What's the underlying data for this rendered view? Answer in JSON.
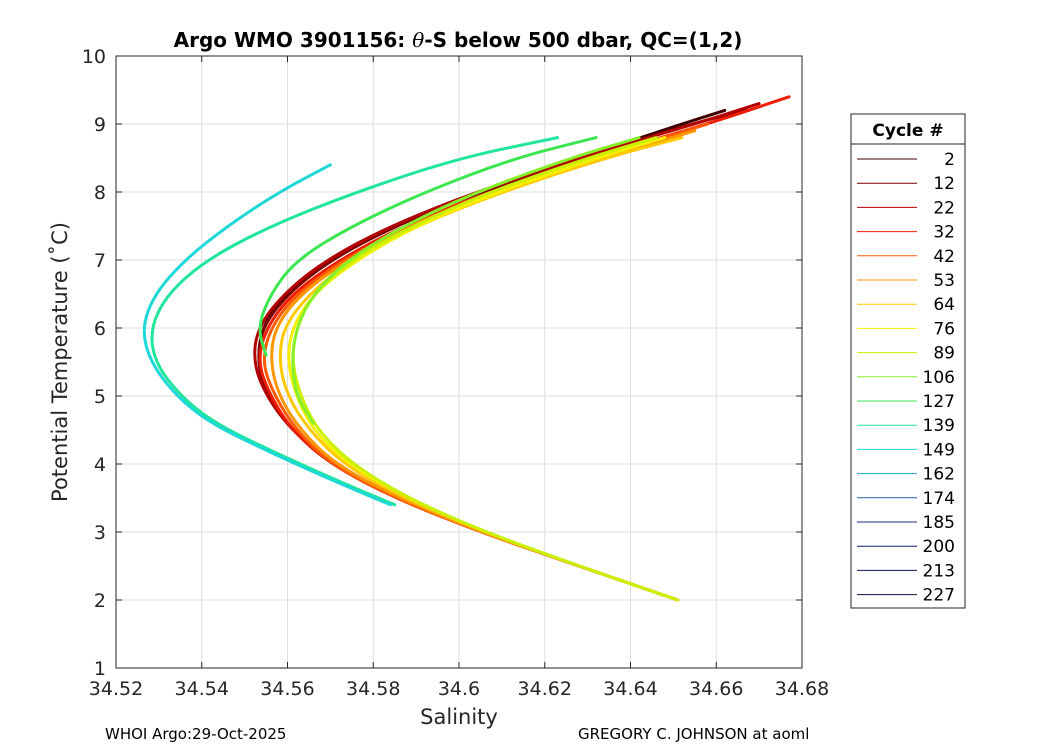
{
  "footer": {
    "left": "WHOI Argo:29-Oct-2025",
    "right": "GREGORY C. JOHNSON at aoml"
  },
  "chart_data": {
    "type": "line",
    "title_prefix": "Argo WMO 3901156: ",
    "title_symbol": "θ",
    "title_suffix": "-S below 500 dbar,  QC=(1,2)",
    "xlabel": "Salinity",
    "ylabel": "Potential Temperature (˚C)",
    "xlim": [
      34.52,
      34.68
    ],
    "ylim": [
      1,
      10
    ],
    "xticks": [
      34.52,
      34.54,
      34.56,
      34.58,
      34.6,
      34.62,
      34.64,
      34.66,
      34.68
    ],
    "xtick_labels": [
      "34.52",
      "34.54",
      "34.56",
      "34.58",
      "34.6",
      "34.62",
      "34.64",
      "34.66",
      "34.68"
    ],
    "yticks": [
      1,
      2,
      3,
      4,
      5,
      6,
      7,
      8,
      9,
      10
    ],
    "ytick_labels": [
      "1",
      "2",
      "3",
      "4",
      "5",
      "6",
      "7",
      "8",
      "9",
      "10"
    ],
    "grid": true,
    "legend_title": "Cycle #",
    "legend_position": "outside-right",
    "series": [
      {
        "name": "2",
        "color": "#3d0000",
        "points": [
          [
            34.651,
            2.0
          ],
          [
            34.628,
            2.5
          ],
          [
            34.605,
            3.0
          ],
          [
            34.585,
            3.5
          ],
          [
            34.57,
            4.0
          ],
          [
            34.561,
            4.5
          ],
          [
            34.555,
            5.0
          ],
          [
            34.553,
            5.5
          ],
          [
            34.554,
            6.0
          ],
          [
            34.559,
            6.5
          ],
          [
            34.569,
            7.0
          ],
          [
            34.584,
            7.5
          ],
          [
            34.604,
            8.0
          ],
          [
            34.628,
            8.5
          ],
          [
            34.652,
            9.0
          ],
          [
            34.662,
            9.2
          ]
        ]
      },
      {
        "name": "12",
        "color": "#7a0000",
        "points": [
          [
            34.651,
            2.0
          ],
          [
            34.628,
            2.5
          ],
          [
            34.605,
            3.0
          ],
          [
            34.585,
            3.5
          ],
          [
            34.57,
            4.0
          ],
          [
            34.561,
            4.5
          ],
          [
            34.555,
            5.0
          ],
          [
            34.553,
            5.5
          ],
          [
            34.554,
            6.0
          ],
          [
            34.56,
            6.5
          ],
          [
            34.57,
            7.0
          ],
          [
            34.585,
            7.5
          ],
          [
            34.605,
            8.0
          ],
          [
            34.629,
            8.5
          ],
          [
            34.654,
            9.0
          ],
          [
            34.667,
            9.2
          ]
        ]
      },
      {
        "name": "22",
        "color": "#b50000",
        "points": [
          [
            34.651,
            2.0
          ],
          [
            34.628,
            2.5
          ],
          [
            34.605,
            3.0
          ],
          [
            34.585,
            3.5
          ],
          [
            34.57,
            4.0
          ],
          [
            34.561,
            4.5
          ],
          [
            34.555,
            5.0
          ],
          [
            34.552,
            5.5
          ],
          [
            34.553,
            6.0
          ],
          [
            34.559,
            6.5
          ],
          [
            34.569,
            7.0
          ],
          [
            34.584,
            7.5
          ],
          [
            34.604,
            8.0
          ],
          [
            34.628,
            8.5
          ],
          [
            34.655,
            9.0
          ],
          [
            34.67,
            9.3
          ]
        ]
      },
      {
        "name": "32",
        "color": "#f01c00",
        "points": [
          [
            34.651,
            2.0
          ],
          [
            34.628,
            2.5
          ],
          [
            34.605,
            3.0
          ],
          [
            34.585,
            3.5
          ],
          [
            34.57,
            4.0
          ],
          [
            34.561,
            4.5
          ],
          [
            34.556,
            5.0
          ],
          [
            34.553,
            5.5
          ],
          [
            34.555,
            6.0
          ],
          [
            34.561,
            6.5
          ],
          [
            34.572,
            7.0
          ],
          [
            34.587,
            7.5
          ],
          [
            34.607,
            8.0
          ],
          [
            34.631,
            8.5
          ],
          [
            34.658,
            9.0
          ],
          [
            34.677,
            9.4
          ]
        ]
      },
      {
        "name": "42",
        "color": "#ff5a00",
        "points": [
          [
            34.651,
            2.0
          ],
          [
            34.628,
            2.5
          ],
          [
            34.605,
            3.0
          ],
          [
            34.585,
            3.5
          ],
          [
            34.57,
            4.0
          ],
          [
            34.562,
            4.5
          ],
          [
            34.557,
            5.0
          ],
          [
            34.554,
            5.5
          ],
          [
            34.556,
            6.0
          ],
          [
            34.562,
            6.5
          ],
          [
            34.573,
            7.0
          ],
          [
            34.588,
            7.5
          ],
          [
            34.608,
            8.0
          ],
          [
            34.632,
            8.5
          ],
          [
            34.658,
            9.0
          ]
        ]
      },
      {
        "name": "53",
        "color": "#ff9600",
        "points": [
          [
            34.651,
            2.0
          ],
          [
            34.628,
            2.5
          ],
          [
            34.605,
            3.0
          ],
          [
            34.586,
            3.5
          ],
          [
            34.571,
            4.0
          ],
          [
            34.563,
            4.5
          ],
          [
            34.558,
            5.0
          ],
          [
            34.556,
            5.5
          ],
          [
            34.557,
            6.0
          ],
          [
            34.563,
            6.5
          ],
          [
            34.574,
            7.0
          ],
          [
            34.589,
            7.5
          ],
          [
            34.609,
            8.0
          ],
          [
            34.633,
            8.5
          ],
          [
            34.655,
            8.9
          ]
        ]
      },
      {
        "name": "64",
        "color": "#ffc800",
        "points": [
          [
            34.651,
            2.0
          ],
          [
            34.628,
            2.5
          ],
          [
            34.606,
            3.0
          ],
          [
            34.587,
            3.5
          ],
          [
            34.573,
            4.0
          ],
          [
            34.565,
            4.5
          ],
          [
            34.56,
            5.0
          ],
          [
            34.558,
            5.5
          ],
          [
            34.559,
            6.0
          ],
          [
            34.565,
            6.5
          ],
          [
            34.575,
            7.0
          ],
          [
            34.59,
            7.5
          ],
          [
            34.61,
            8.0
          ],
          [
            34.634,
            8.5
          ],
          [
            34.652,
            8.8
          ]
        ]
      },
      {
        "name": "76",
        "color": "#f5f000",
        "points": [
          [
            34.651,
            2.0
          ],
          [
            34.628,
            2.5
          ],
          [
            34.606,
            3.0
          ],
          [
            34.588,
            3.5
          ],
          [
            34.574,
            4.0
          ],
          [
            34.566,
            4.5
          ],
          [
            34.562,
            5.0
          ],
          [
            34.56,
            5.5
          ],
          [
            34.561,
            6.0
          ],
          [
            34.566,
            6.5
          ],
          [
            34.576,
            7.0
          ],
          [
            34.59,
            7.5
          ],
          [
            34.609,
            8.0
          ],
          [
            34.632,
            8.5
          ],
          [
            34.648,
            8.8
          ]
        ]
      },
      {
        "name": "89",
        "color": "#c8f000",
        "points": [
          [
            34.651,
            2.0
          ],
          [
            34.628,
            2.5
          ],
          [
            34.606,
            3.0
          ],
          [
            34.588,
            3.5
          ],
          [
            34.575,
            4.0
          ],
          [
            34.567,
            4.5
          ],
          [
            34.563,
            5.0
          ],
          [
            34.561,
            5.5
          ],
          [
            34.562,
            6.0
          ],
          [
            34.566,
            6.5
          ],
          [
            34.575,
            7.0
          ],
          [
            34.589,
            7.5
          ],
          [
            34.607,
            8.0
          ],
          [
            34.63,
            8.5
          ],
          [
            34.646,
            8.8
          ]
        ]
      },
      {
        "name": "106",
        "color": "#86f02a",
        "points": [
          [
            34.566,
            4.6
          ],
          [
            34.562,
            5.0
          ],
          [
            34.561,
            5.5
          ],
          [
            34.562,
            6.0
          ],
          [
            34.566,
            6.5
          ],
          [
            34.574,
            7.0
          ],
          [
            34.587,
            7.5
          ],
          [
            34.604,
            8.0
          ],
          [
            34.626,
            8.5
          ],
          [
            34.642,
            8.8
          ]
        ]
      },
      {
        "name": "127",
        "color": "#3ce650",
        "points": [
          [
            34.555,
            5.6
          ],
          [
            34.553,
            6.0
          ],
          [
            34.556,
            6.5
          ],
          [
            34.562,
            7.0
          ],
          [
            34.575,
            7.5
          ],
          [
            34.592,
            8.0
          ],
          [
            34.613,
            8.5
          ],
          [
            34.632,
            8.8
          ]
        ]
      },
      {
        "name": "139",
        "color": "#1fe69a",
        "points": [
          [
            34.585,
            3.4
          ],
          [
            34.57,
            3.8
          ],
          [
            34.556,
            4.2
          ],
          [
            34.543,
            4.6
          ],
          [
            34.535,
            5.0
          ],
          [
            34.529,
            5.5
          ],
          [
            34.528,
            6.0
          ],
          [
            34.532,
            6.5
          ],
          [
            34.541,
            7.0
          ],
          [
            34.556,
            7.5
          ],
          [
            34.576,
            8.0
          ],
          [
            34.6,
            8.5
          ],
          [
            34.623,
            8.8
          ]
        ]
      },
      {
        "name": "149",
        "color": "#1ed8d8",
        "points": [
          [
            34.584,
            3.4
          ],
          [
            34.569,
            3.8
          ],
          [
            34.555,
            4.2
          ],
          [
            34.542,
            4.6
          ],
          [
            34.534,
            5.0
          ],
          [
            34.528,
            5.5
          ],
          [
            34.526,
            6.0
          ],
          [
            34.529,
            6.5
          ],
          [
            34.536,
            7.0
          ],
          [
            34.546,
            7.5
          ],
          [
            34.558,
            8.0
          ],
          [
            34.57,
            8.4
          ]
        ]
      },
      {
        "name": "162",
        "color": "#1e9ed2",
        "points": []
      },
      {
        "name": "174",
        "color": "#1e64b4",
        "points": []
      },
      {
        "name": "185",
        "color": "#1e2d8c",
        "points": []
      },
      {
        "name": "200",
        "color": "#141e6e",
        "points": []
      },
      {
        "name": "213",
        "color": "#0f1455",
        "points": []
      },
      {
        "name": "227",
        "color": "#0a0f3c",
        "points": []
      }
    ]
  }
}
